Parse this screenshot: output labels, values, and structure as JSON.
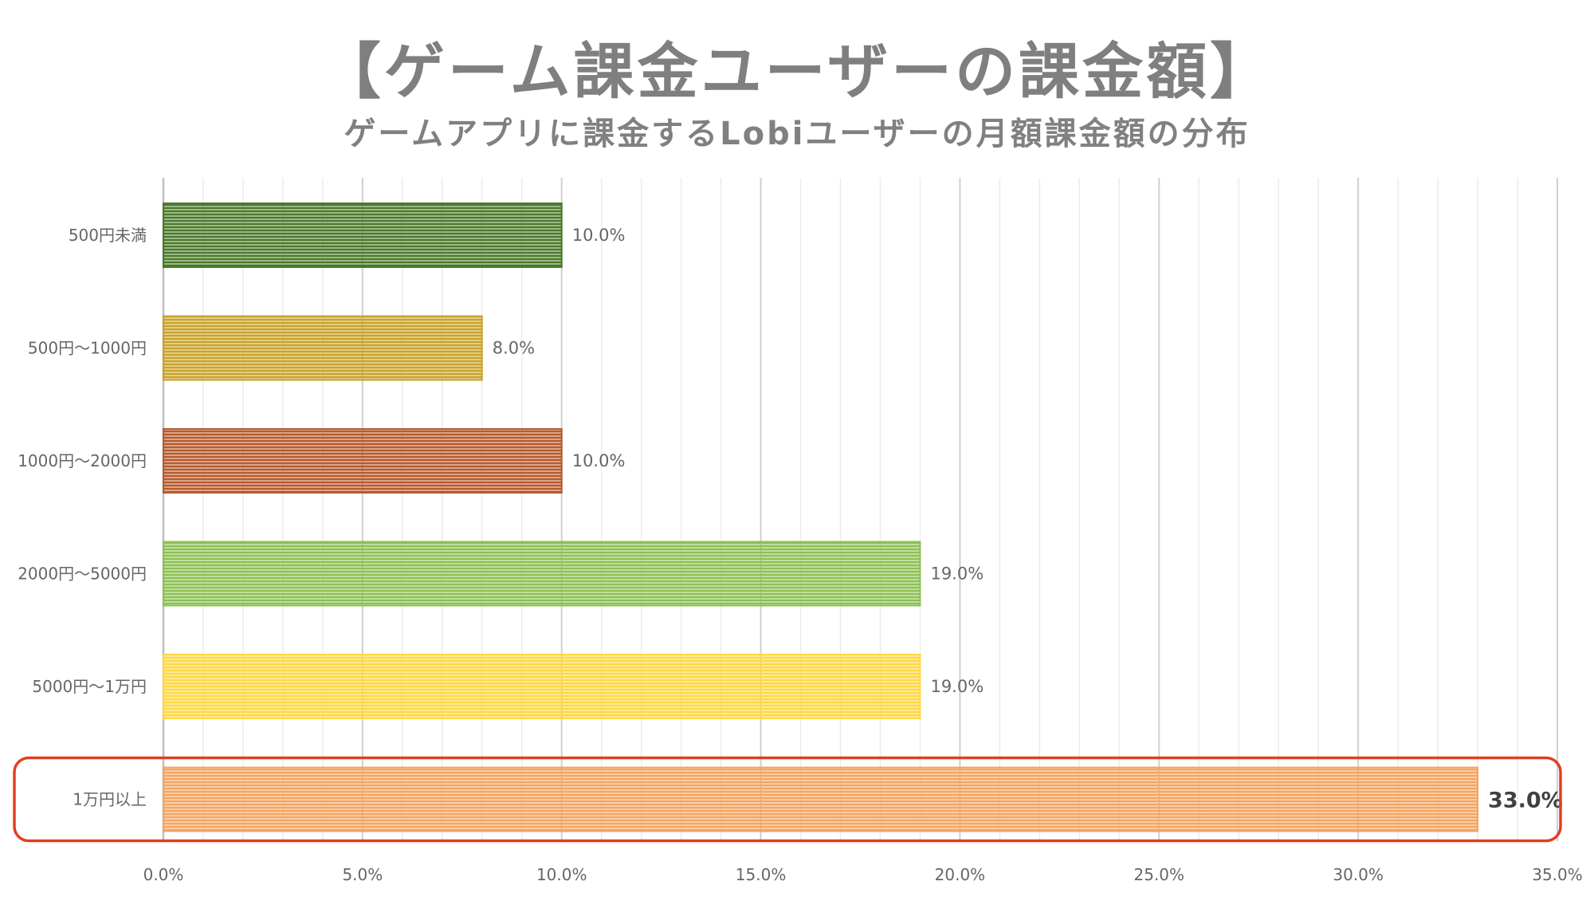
{
  "title": "【ゲーム課金ユーザーの課金額】",
  "subtitle": "ゲームアプリに課金するLobiユーザーの月額課金額の分布",
  "chart_data": {
    "type": "bar",
    "orientation": "horizontal",
    "categories": [
      "500円未満",
      "500円〜1000円",
      "1000円〜2000円",
      "2000円〜5000円",
      "5000円〜1万円",
      "1万円以上"
    ],
    "values": [
      10.0,
      8.0,
      10.0,
      19.0,
      19.0,
      33.0
    ],
    "value_labels": [
      "10.0%",
      "8.0%",
      "10.0%",
      "19.0%",
      "19.0%",
      "33.0%"
    ],
    "bar_colors": [
      "#4a7a2a",
      "#c9a227",
      "#b8592b",
      "#8cc152",
      "#ffd740",
      "#f4a460"
    ],
    "xlim": [
      0,
      35
    ],
    "x_ticks": [
      0,
      5,
      10,
      15,
      20,
      25,
      30,
      35
    ],
    "x_tick_labels": [
      "0.0%",
      "5.0%",
      "10.0%",
      "15.0%",
      "20.0%",
      "25.0%",
      "30.0%",
      "35.0%"
    ],
    "grid": true,
    "highlight": {
      "category": "1万円以上",
      "color": "#e04020"
    }
  }
}
